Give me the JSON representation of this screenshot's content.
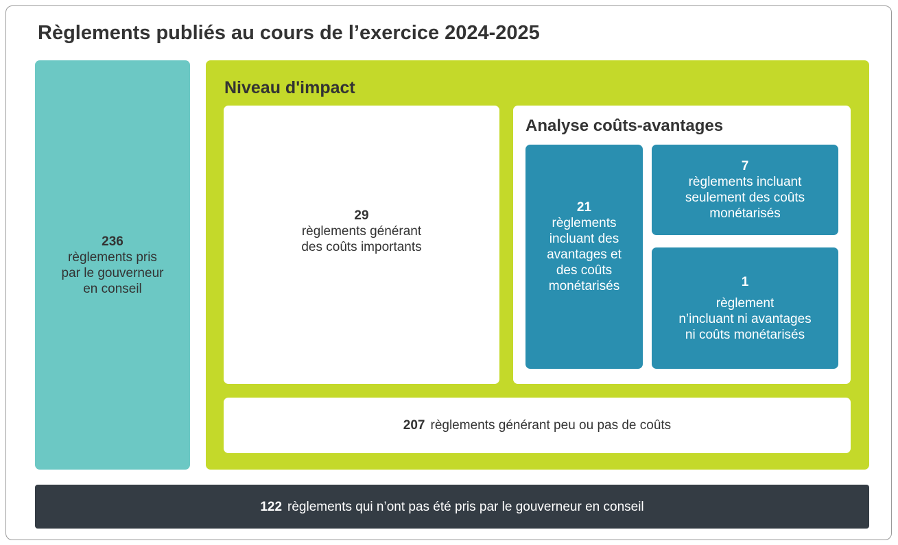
{
  "title": "Règlements publiés au cours de l’exercice 2024-2025",
  "governor": {
    "number": 236,
    "lines": [
      "règlements pris",
      "par le gouverneur",
      "en conseil"
    ]
  },
  "impact": {
    "title": "Niveau d'impact",
    "significant": {
      "number": 29,
      "lines": [
        "règlements générant",
        "des coûts importants"
      ]
    },
    "cba": {
      "title": "Analyse coûts-avantages",
      "both": {
        "number": 21,
        "lines": [
          "règlements",
          "incluant des",
          "avantages et",
          "des coûts",
          "monétarisés"
        ]
      },
      "costs_only": {
        "number": 7,
        "lines": [
          "règlements incluant",
          "seulement des coûts",
          "monétarisés"
        ]
      },
      "none": {
        "number": 1,
        "lines": [
          "règlement",
          "n’incluant ni avantages",
          "ni coûts monétarisés"
        ]
      }
    },
    "low": {
      "number": 207,
      "label": "règlements générant peu ou pas de coûts"
    }
  },
  "not_governor": {
    "number": 122,
    "label": "règlements qui n’ont pas été pris par le gouverneur en conseil"
  }
}
